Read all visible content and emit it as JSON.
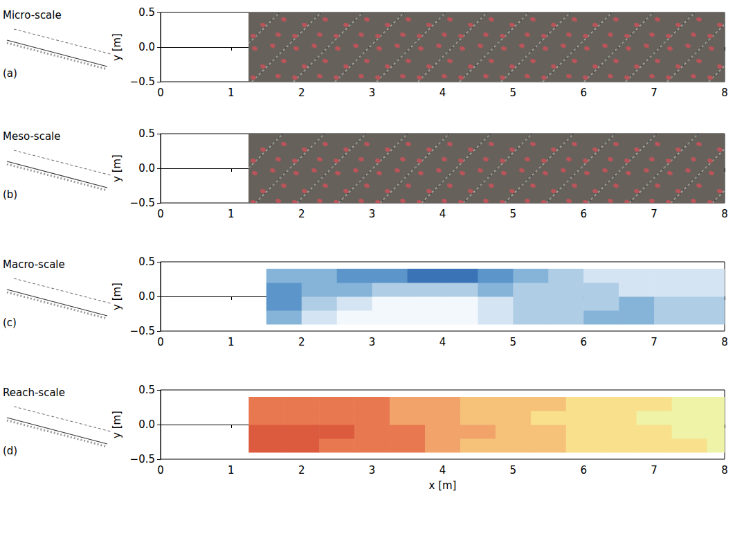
{
  "chart_data": [
    {
      "type": "image",
      "label": "Micro-scale",
      "panel": "(a)",
      "xlim": [
        0,
        8
      ],
      "xticks": [
        0,
        1,
        2,
        3,
        4,
        5,
        6,
        7,
        8
      ],
      "ylim": [
        -0.5,
        0.5
      ],
      "yticks": [
        {
          "value": -0.5,
          "label": "−0.5"
        },
        {
          "value": 0,
          "label": "0.0"
        },
        {
          "value": 0.5,
          "label": "0.5"
        }
      ],
      "ylabel": "y [m]",
      "image_extent": {
        "x": [
          1.25,
          8
        ],
        "y": [
          -0.5,
          0.5
        ]
      }
    },
    {
      "type": "image",
      "label": "Meso-scale",
      "panel": "(b)",
      "xlim": [
        0,
        8
      ],
      "xticks": [
        0,
        1,
        2,
        3,
        4,
        5,
        6,
        7,
        8
      ],
      "ylim": [
        -0.5,
        0.5
      ],
      "yticks": [
        {
          "value": -0.5,
          "label": "−0.5"
        },
        {
          "value": 0,
          "label": "0.0"
        },
        {
          "value": 0.5,
          "label": "0.5"
        }
      ],
      "ylabel": "y [m]",
      "image_extent": {
        "x": [
          1.25,
          8
        ],
        "y": [
          -0.5,
          0.5
        ]
      }
    },
    {
      "type": "heatmap",
      "label": "Macro-scale",
      "panel": "(c)",
      "xlim": [
        0,
        8
      ],
      "xticks": [
        0,
        1,
        2,
        3,
        4,
        5,
        6,
        7,
        8
      ],
      "ylim": [
        -0.5,
        0.5
      ],
      "yticks": [
        {
          "value": -0.5,
          "label": "−0.5"
        },
        {
          "value": 0,
          "label": "0.0"
        },
        {
          "value": 0.5,
          "label": "0.5"
        }
      ],
      "ylabel": "y [m]",
      "cells": {
        "x_edges": [
          1.5,
          2,
          2.5,
          3,
          3.5,
          4,
          4.5,
          5,
          5.5,
          6,
          6.5,
          7,
          7.5,
          8
        ],
        "y_edges": [
          -0.4,
          -0.2,
          0,
          0.2,
          0.4
        ],
        "values": [
          [
            4,
            2,
            1,
            1,
            1,
            1,
            2,
            3,
            3,
            4,
            4,
            3,
            3
          ],
          [
            5,
            3,
            2,
            1,
            1,
            1,
            2,
            3,
            3,
            3,
            4,
            3,
            3
          ],
          [
            5,
            4,
            4,
            3,
            3,
            3,
            4,
            3,
            3,
            3,
            2,
            2,
            2
          ],
          [
            4,
            4,
            5,
            5,
            6,
            6,
            5,
            4,
            3,
            2,
            2,
            2,
            2
          ]
        ]
      },
      "levels": [
        1,
        2,
        3,
        4,
        5,
        6
      ],
      "colors": [
        "#f3f8fc",
        "#d4e4f2",
        "#b0cde6",
        "#86b3d8",
        "#5b95c9",
        "#3a74b6"
      ]
    },
    {
      "type": "heatmap",
      "label": "Reach-scale",
      "panel": "(d)",
      "xlim": [
        0,
        8
      ],
      "xticks": [
        0,
        1,
        2,
        3,
        4,
        5,
        6,
        7,
        8
      ],
      "ylim": [
        -0.5,
        0.5
      ],
      "yticks": [
        {
          "value": -0.5,
          "label": "−0.5"
        },
        {
          "value": 0,
          "label": "0.0"
        },
        {
          "value": 0.5,
          "label": "0.5"
        }
      ],
      "ylabel": "y [m]",
      "xlabel": "x [m]",
      "cells": {
        "x_edges": [
          1.25,
          1.75,
          2.25,
          2.75,
          3.25,
          3.75,
          4.25,
          4.75,
          5.25,
          5.75,
          6.25,
          6.75,
          7.25,
          7.75,
          8
        ],
        "y_edges": [
          -0.4,
          -0.2,
          0,
          0.2,
          0.4
        ],
        "values": [
          [
            6,
            6,
            5,
            5,
            5,
            4,
            3,
            3,
            3,
            2,
            2,
            2,
            2,
            1
          ],
          [
            6,
            6,
            6,
            5,
            5,
            4,
            4,
            3,
            3,
            2,
            2,
            2,
            1,
            1
          ],
          [
            5,
            5,
            5,
            5,
            4,
            4,
            3,
            3,
            2,
            2,
            2,
            1,
            1,
            1
          ],
          [
            5,
            5,
            5,
            5,
            4,
            4,
            3,
            3,
            3,
            2,
            2,
            2,
            1,
            1
          ]
        ]
      },
      "levels": [
        1,
        2,
        3,
        4,
        5,
        6
      ],
      "colors": [
        "#eef3a8",
        "#f8e08c",
        "#f6c27a",
        "#f2a36a",
        "#e8784f",
        "#dc5a3e"
      ]
    }
  ]
}
